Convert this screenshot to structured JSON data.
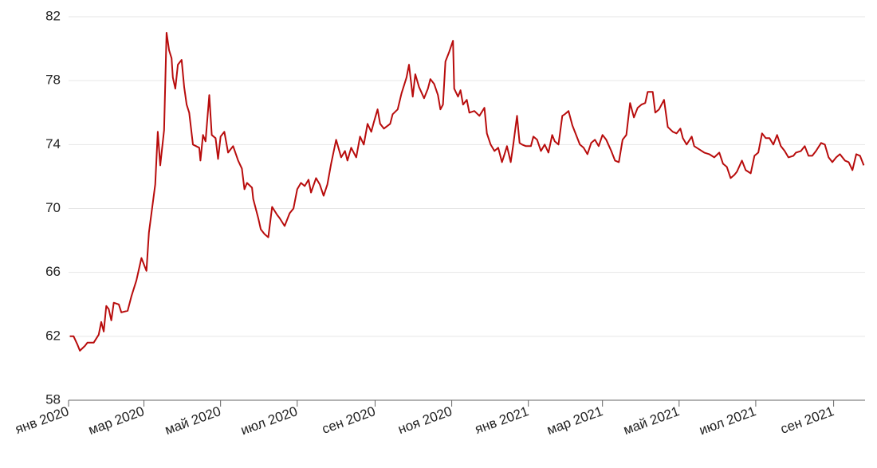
{
  "chart_data": {
    "type": "line",
    "color": "#b80c0c",
    "grid": true,
    "ylim": [
      58,
      82
    ],
    "yticks": [
      58,
      62,
      66,
      70,
      74,
      78,
      82
    ],
    "xlim": [
      "2020-01-01",
      "2021-09-26"
    ],
    "xticks": [
      {
        "value": "2020-01",
        "label": "янв 2020"
      },
      {
        "value": "2020-03",
        "label": "мар 2020"
      },
      {
        "value": "2020-05",
        "label": "май 2020"
      },
      {
        "value": "2020-07",
        "label": "июл 2020"
      },
      {
        "value": "2020-09",
        "label": "сен 2020"
      },
      {
        "value": "2020-11",
        "label": "ноя 2020"
      },
      {
        "value": "2021-01",
        "label": "янв 2021"
      },
      {
        "value": "2021-03",
        "label": "мар 2021"
      },
      {
        "value": "2021-05",
        "label": "май 2021"
      },
      {
        "value": "2021-07",
        "label": "июл 2021"
      },
      {
        "value": "2021-09",
        "label": "сен 2021"
      }
    ],
    "x": [
      "2020-01-02",
      "2020-01-05",
      "2020-01-08",
      "2020-01-10",
      "2020-01-14",
      "2020-01-16",
      "2020-01-21",
      "2020-01-25",
      "2020-01-27",
      "2020-01-29",
      "2020-01-31",
      "2020-02-02",
      "2020-02-04",
      "2020-02-06",
      "2020-02-10",
      "2020-02-12",
      "2020-02-17",
      "2020-02-20",
      "2020-02-24",
      "2020-02-28",
      "2020-03-03",
      "2020-03-05",
      "2020-03-10",
      "2020-03-12",
      "2020-03-14",
      "2020-03-17",
      "2020-03-19",
      "2020-03-21",
      "2020-03-23",
      "2020-03-24",
      "2020-03-26",
      "2020-03-28",
      "2020-03-31",
      "2020-04-02",
      "2020-04-04",
      "2020-04-06",
      "2020-04-09",
      "2020-04-14",
      "2020-04-15",
      "2020-04-17",
      "2020-04-19",
      "2020-04-22",
      "2020-04-24",
      "2020-04-27",
      "2020-04-29",
      "2020-05-01",
      "2020-05-04",
      "2020-05-07",
      "2020-05-11",
      "2020-05-15",
      "2020-05-18",
      "2020-05-20",
      "2020-05-22",
      "2020-05-26",
      "2020-05-27",
      "2020-05-31",
      "2020-06-02",
      "2020-06-05",
      "2020-06-08",
      "2020-06-11",
      "2020-06-15",
      "2020-06-17",
      "2020-06-21",
      "2020-06-25",
      "2020-06-28",
      "2020-07-01",
      "2020-07-04",
      "2020-07-07",
      "2020-07-10",
      "2020-07-12",
      "2020-07-16",
      "2020-07-19",
      "2020-07-22",
      "2020-07-25",
      "2020-07-28",
      "2020-08-01",
      "2020-08-05",
      "2020-08-08",
      "2020-08-10",
      "2020-08-13",
      "2020-08-17",
      "2020-08-20",
      "2020-08-23",
      "2020-08-26",
      "2020-08-29",
      "2020-08-31",
      "2020-09-03",
      "2020-09-05",
      "2020-09-08",
      "2020-09-13",
      "2020-09-15",
      "2020-09-19",
      "2020-09-22",
      "2020-09-26",
      "2020-09-28",
      "2020-10-01",
      "2020-10-03",
      "2020-10-06",
      "2020-10-10",
      "2020-10-13",
      "2020-10-15",
      "2020-10-18",
      "2020-10-21",
      "2020-10-23",
      "2020-10-25",
      "2020-10-27",
      "2020-10-30",
      "2020-11-02",
      "2020-11-03",
      "2020-11-06",
      "2020-11-08",
      "2020-11-10",
      "2020-11-13",
      "2020-11-15",
      "2020-11-19",
      "2020-11-23",
      "2020-11-27",
      "2020-11-29",
      "2020-12-02",
      "2020-12-05",
      "2020-12-08",
      "2020-12-11",
      "2020-12-13",
      "2020-12-15",
      "2020-12-18",
      "2020-12-20",
      "2020-12-23",
      "2020-12-25",
      "2020-12-27",
      "2020-12-30",
      "2021-01-03",
      "2021-01-05",
      "2021-01-08",
      "2021-01-11",
      "2021-01-14",
      "2021-01-17",
      "2021-01-20",
      "2021-01-22",
      "2021-01-25",
      "2021-01-28",
      "2021-01-30",
      "2021-02-02",
      "2021-02-05",
      "2021-02-08",
      "2021-02-11",
      "2021-02-14",
      "2021-02-17",
      "2021-02-20",
      "2021-02-23",
      "2021-02-26",
      "2021-03-01",
      "2021-03-04",
      "2021-03-08",
      "2021-03-11",
      "2021-03-14",
      "2021-03-17",
      "2021-03-20",
      "2021-03-23",
      "2021-03-26",
      "2021-03-29",
      "2021-04-01",
      "2021-04-04",
      "2021-04-06",
      "2021-04-10",
      "2021-04-12",
      "2021-04-15",
      "2021-04-19",
      "2021-04-22",
      "2021-04-26",
      "2021-04-29",
      "2021-05-02",
      "2021-05-04",
      "2021-05-07",
      "2021-05-11",
      "2021-05-13",
      "2021-05-17",
      "2021-05-21",
      "2021-05-25",
      "2021-05-29",
      "2021-06-02",
      "2021-06-05",
      "2021-06-08",
      "2021-06-11",
      "2021-06-14",
      "2021-06-16",
      "2021-06-20",
      "2021-06-23",
      "2021-06-27",
      "2021-06-30",
      "2021-07-03",
      "2021-07-06",
      "2021-07-09",
      "2021-07-12",
      "2021-07-15",
      "2021-07-18",
      "2021-07-21",
      "2021-07-24",
      "2021-07-27",
      "2021-07-31",
      "2021-08-02",
      "2021-08-06",
      "2021-08-09",
      "2021-08-12",
      "2021-08-15",
      "2021-08-18",
      "2021-08-22",
      "2021-08-25",
      "2021-08-28",
      "2021-08-31",
      "2021-09-03",
      "2021-09-06",
      "2021-09-10",
      "2021-09-13",
      "2021-09-16",
      "2021-09-19",
      "2021-09-22",
      "2021-09-25"
    ],
    "values": [
      62.0,
      62.0,
      61.5,
      61.1,
      61.4,
      61.6,
      61.6,
      62.1,
      62.9,
      62.3,
      63.9,
      63.7,
      63.0,
      64.1,
      64.0,
      63.5,
      63.6,
      64.5,
      65.5,
      66.9,
      66.1,
      68.5,
      71.5,
      74.8,
      72.7,
      74.9,
      81.0,
      79.9,
      79.4,
      78.2,
      77.5,
      79.0,
      79.3,
      77.6,
      76.5,
      76.0,
      74.0,
      73.8,
      73.0,
      74.6,
      74.2,
      77.1,
      74.6,
      74.4,
      73.1,
      74.5,
      74.8,
      73.5,
      73.9,
      73.0,
      72.5,
      71.2,
      71.6,
      71.3,
      70.6,
      69.4,
      68.7,
      68.4,
      68.2,
      70.1,
      69.6,
      69.4,
      68.9,
      69.7,
      70.0,
      71.2,
      71.6,
      71.4,
      71.8,
      71.0,
      71.9,
      71.5,
      70.8,
      71.5,
      72.8,
      74.3,
      73.2,
      73.6,
      73.0,
      73.8,
      73.2,
      74.5,
      74.0,
      75.3,
      74.8,
      75.4,
      76.2,
      75.3,
      75.0,
      75.3,
      75.9,
      76.2,
      77.2,
      78.2,
      79.0,
      77.0,
      78.4,
      77.6,
      76.9,
      77.5,
      78.1,
      77.8,
      77.1,
      76.2,
      76.5,
      79.2,
      79.8,
      80.5,
      77.5,
      77.0,
      77.4,
      76.5,
      76.8,
      76.0,
      76.1,
      75.8,
      76.3,
      74.7,
      74.0,
      73.6,
      73.8,
      72.9,
      73.4,
      73.9,
      72.9,
      74.0,
      75.8,
      74.1,
      74.0,
      73.9,
      73.9,
      74.5,
      74.3,
      73.6,
      74.0,
      73.5,
      74.6,
      74.2,
      74.0,
      75.8,
      75.9,
      76.1,
      75.2,
      74.6,
      74.0,
      73.8,
      73.4,
      74.1,
      74.3,
      73.9,
      74.6,
      74.3,
      73.6,
      73.0,
      72.9,
      74.3,
      74.6,
      76.6,
      75.7,
      76.3,
      76.5,
      76.6,
      77.3,
      77.3,
      76.0,
      76.2,
      76.8,
      75.1,
      74.8,
      74.7,
      75.0,
      74.4,
      74.0,
      74.5,
      73.9,
      73.7,
      73.5,
      73.4,
      73.2,
      73.5,
      72.8,
      72.6,
      71.9,
      72.1,
      72.3,
      73.0,
      72.4,
      72.2,
      73.3,
      73.5,
      74.7,
      74.4,
      74.4,
      74.0,
      74.6,
      73.9,
      73.6,
      73.2,
      73.3,
      73.5,
      73.6,
      73.9,
      73.3,
      73.3,
      73.6,
      74.1,
      74.0,
      73.2,
      72.9,
      73.2,
      73.4,
      73.0,
      72.9,
      72.4,
      73.4,
      73.3,
      72.7
    ]
  }
}
